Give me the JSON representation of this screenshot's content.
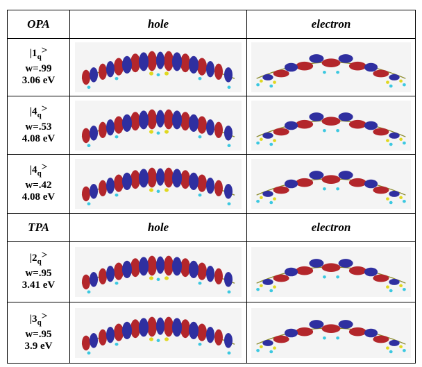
{
  "sections": [
    {
      "header": [
        "OPA",
        "hole",
        "electron"
      ],
      "rows": [
        {
          "state": "|1",
          "subscript": "q",
          "close": ">",
          "weight": "w=.99",
          "energy": "3.06 eV"
        },
        {
          "state": "|4",
          "subscript": "q",
          "close": ">",
          "weight": "w=.53",
          "energy": "4.08 eV"
        },
        {
          "state": "|4",
          "subscript": "q",
          "close": ">",
          "weight": "w=.42",
          "energy": "4.08 eV"
        }
      ]
    },
    {
      "header": [
        "TPA",
        "hole",
        "electron"
      ],
      "rows": [
        {
          "state": "|2",
          "subscript": "q",
          "close": ">",
          "weight": "w=.95",
          "energy": "3.41 eV"
        },
        {
          "state": "|3",
          "subscript": "q",
          "close": ">",
          "weight": "w=.95",
          "energy": "3.9 eV"
        }
      ]
    }
  ]
}
